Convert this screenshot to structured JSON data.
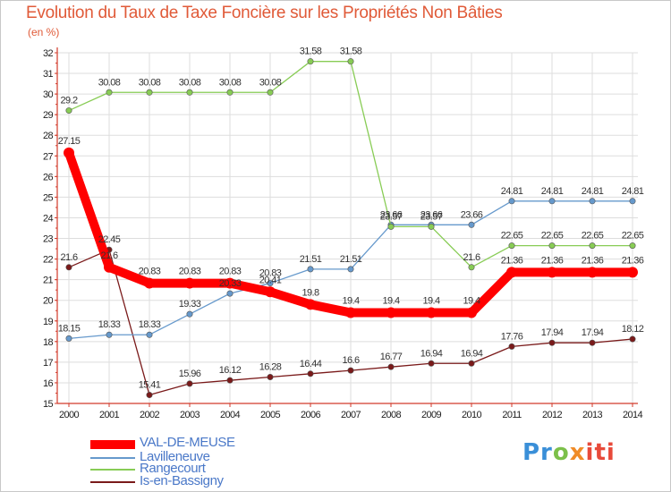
{
  "header": {
    "title": "Evolution du Taux de Taxe Foncière sur les Propriétés Non Bâties",
    "unit": "(en %)"
  },
  "brand": {
    "name": "Proxiti",
    "letters": [
      "Pr",
      "o",
      "x",
      "iti"
    ]
  },
  "colors": {
    "title": "#e05a38",
    "axis": "#d23a2a",
    "grid": "#dddddd",
    "val_de_meuse": "#ff0000",
    "lavilleneuve": "#6699cc",
    "rangecourt": "#88cc55",
    "is_en_bassigny": "#7a1a1a"
  },
  "chart_data": {
    "type": "line",
    "title": "Evolution du Taux de Taxe Foncière sur les Propriétés Non Bâties",
    "ylabel": "(en %)",
    "xlabel": "",
    "x": [
      "2000",
      "2001",
      "2002",
      "2003",
      "2004",
      "2005",
      "2006",
      "2007",
      "2008",
      "2009",
      "2010",
      "2011",
      "2012",
      "2013",
      "2014"
    ],
    "ylim": [
      15,
      32
    ],
    "yticks": [
      "15",
      "16",
      "17",
      "18",
      "19",
      "20",
      "21",
      "22",
      "23",
      "24",
      "25",
      "26",
      "27",
      "28",
      "29",
      "30",
      "31",
      "32"
    ],
    "grid": true,
    "legend_position": "bottom-left",
    "series": [
      {
        "name": "VAL-DE-MEUSE",
        "key": "val_de_meuse",
        "values": [
          27.15,
          21.6,
          20.83,
          20.83,
          20.83,
          20.41,
          19.8,
          19.4,
          19.4,
          19.4,
          19.4,
          21.36,
          21.36,
          21.36,
          21.36
        ],
        "labels": [
          "27.15",
          "21.6",
          "20.83",
          "20.83",
          "20.83",
          "20.41",
          "19.8",
          "19.4",
          "19.4",
          "19.4",
          "19.4",
          "21.36",
          "21.36",
          "21.36",
          "21.36"
        ]
      },
      {
        "name": "Lavilleneuve",
        "key": "lavilleneuve",
        "values": [
          18.15,
          18.33,
          18.33,
          19.33,
          20.33,
          20.83,
          21.51,
          21.51,
          23.66,
          23.66,
          23.66,
          24.81,
          24.81,
          24.81,
          24.81
        ],
        "labels": [
          "18.15",
          "18.33",
          "18.33",
          "19.33",
          "20.33",
          "20.83",
          "21.51",
          "21.51",
          "23.66",
          "23.66",
          "23.66",
          "24.81",
          "24.81",
          "24.81",
          "24.81"
        ]
      },
      {
        "name": "Rangecourt",
        "key": "rangecourt",
        "values": [
          29.2,
          30.08,
          30.08,
          30.08,
          30.08,
          30.08,
          31.58,
          31.58,
          23.57,
          23.57,
          21.6,
          22.65,
          22.65,
          22.65,
          22.65
        ],
        "labels": [
          "29.2",
          "30.08",
          "30.08",
          "30.08",
          "30.08",
          "30.08",
          "31.58",
          "31.58",
          "23.57",
          "23.57",
          "21.6",
          "22.65",
          "22.65",
          "22.65",
          "22.65"
        ]
      },
      {
        "name": "Is-en-Bassigny",
        "key": "is_en_bassigny",
        "values": [
          21.6,
          22.45,
          15.41,
          15.96,
          16.12,
          16.28,
          16.44,
          16.6,
          16.77,
          16.94,
          16.94,
          17.76,
          17.94,
          17.94,
          18.12
        ],
        "labels": [
          "21.6",
          "22.45",
          "15.41",
          "15.96",
          "16.12",
          "16.28",
          "16.44",
          "16.6",
          "16.77",
          "16.94",
          "16.94",
          "17.76",
          "17.94",
          "17.94",
          "18.12"
        ]
      }
    ]
  }
}
